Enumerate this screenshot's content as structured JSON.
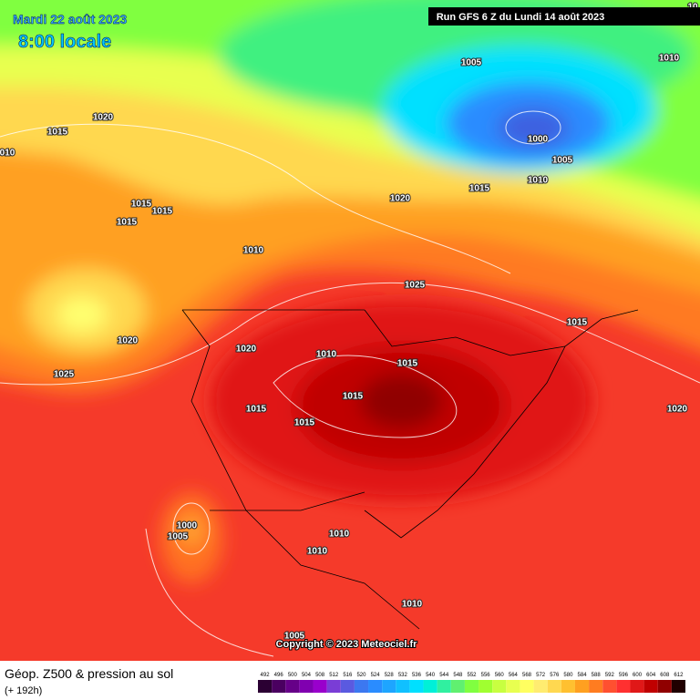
{
  "header": {
    "date": "Mardi 22 août 2023",
    "time": "8:00 locale",
    "run": "Run GFS 6 Z du Lundi 14 août 2023"
  },
  "isobar_labels": [
    "1020",
    "1015",
    "010",
    "1015",
    "1015",
    "1015",
    "1010",
    "1020",
    "1025",
    "1020",
    "1010",
    "1015",
    "1015",
    "1015",
    "1015",
    "1025",
    "1020",
    "1015",
    "1005",
    "1000",
    "1005",
    "1010",
    "1010",
    "10",
    "1015",
    "1020",
    "1010",
    "1010",
    "1010",
    "1000",
    "1005",
    "1005"
  ],
  "copyright": "Copyright © 2023 Meteociel.fr",
  "footer": {
    "title": "Géop. Z500 & pression au sol",
    "lead_time": "(+ 192h)"
  },
  "legend": {
    "levels": [
      {
        "value": 492,
        "color": "#2b0033"
      },
      {
        "value": 496,
        "color": "#4a0060"
      },
      {
        "value": 500,
        "color": "#660088"
      },
      {
        "value": 504,
        "color": "#8000b0"
      },
      {
        "value": 508,
        "color": "#9900cc"
      },
      {
        "value": 512,
        "color": "#7a3dd6"
      },
      {
        "value": 516,
        "color": "#5a5ae0"
      },
      {
        "value": 520,
        "color": "#3c78f0"
      },
      {
        "value": 524,
        "color": "#2a8cff"
      },
      {
        "value": 528,
        "color": "#1ea5ff"
      },
      {
        "value": 532,
        "color": "#10c0ff"
      },
      {
        "value": 536,
        "color": "#00e0ff"
      },
      {
        "value": 540,
        "color": "#00f0d8"
      },
      {
        "value": 544,
        "color": "#30f0a0"
      },
      {
        "value": 548,
        "color": "#60f070"
      },
      {
        "value": 552,
        "color": "#80ff40"
      },
      {
        "value": 556,
        "color": "#a0ff30"
      },
      {
        "value": 560,
        "color": "#c8ff40"
      },
      {
        "value": 564,
        "color": "#e8ff50"
      },
      {
        "value": 568,
        "color": "#ffff60"
      },
      {
        "value": 572,
        "color": "#ffec70"
      },
      {
        "value": 576,
        "color": "#ffd850"
      },
      {
        "value": 580,
        "color": "#ffc030"
      },
      {
        "value": 584,
        "color": "#ffa020"
      },
      {
        "value": 588,
        "color": "#ff7c20"
      },
      {
        "value": 592,
        "color": "#ff5030"
      },
      {
        "value": 596,
        "color": "#ff3030"
      },
      {
        "value": 600,
        "color": "#e01818"
      },
      {
        "value": 604,
        "color": "#c00000"
      },
      {
        "value": 608,
        "color": "#900000"
      },
      {
        "value": 612,
        "color": "#200000"
      }
    ]
  }
}
